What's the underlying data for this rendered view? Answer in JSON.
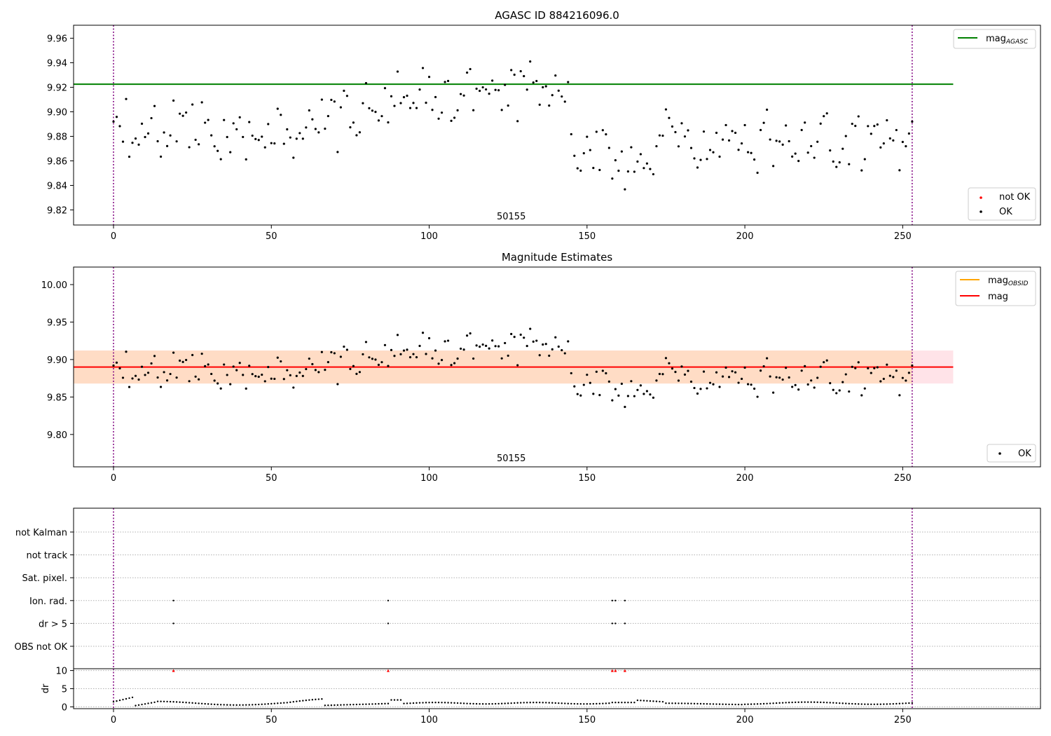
{
  "chart_data": [
    {
      "type": "scatter",
      "title": "AGASC ID 884216096.0",
      "annotation": "50155",
      "xlim": [
        -12.65,
        293.65
      ],
      "ylim": [
        9.8077,
        9.9706
      ],
      "x_ticks": [
        0,
        50,
        100,
        150,
        200,
        250
      ],
      "y_ticks": [
        9.82,
        9.84,
        9.86,
        9.88,
        9.9,
        9.92,
        9.94,
        9.96
      ],
      "y_tick_labels": [
        "9.82",
        "9.84",
        "9.86",
        "9.88",
        "9.90",
        "9.92",
        "9.94",
        "9.96"
      ],
      "vlines": [
        0,
        253
      ],
      "hline": {
        "name": "mag_AGASC",
        "y": 9.9225,
        "x_range": [
          -12.65,
          266
        ],
        "color": "#008000"
      },
      "legend_upper": [
        {
          "label": "mag",
          "sub": "AGASC",
          "color": "#008000",
          "kind": "line"
        }
      ],
      "legend_lower": [
        {
          "label": "not OK",
          "color": "#ff0000",
          "kind": "dot"
        },
        {
          "label": "OK",
          "color": "#000000",
          "kind": "dot"
        }
      ],
      "series": [
        {
          "name": "OK",
          "color": "#000000"
        }
      ]
    },
    {
      "type": "scatter",
      "title": "Magnitude Estimates",
      "annotation": "50155",
      "xlim": [
        -12.65,
        293.65
      ],
      "ylim": [
        9.7568,
        10.0234
      ],
      "x_ticks": [
        0,
        50,
        100,
        150,
        200,
        250
      ],
      "y_ticks": [
        9.8,
        9.85,
        9.9,
        9.95,
        10.0
      ],
      "y_tick_labels": [
        "9.80",
        "9.85",
        "9.90",
        "9.95",
        "10.00"
      ],
      "vlines": [
        0,
        253
      ],
      "band_obsid": {
        "y0": 9.868,
        "y1": 9.912,
        "color": "#ffc0cb"
      },
      "band_mag": {
        "y0": 9.868,
        "y1": 9.912,
        "color": "#ffdab9"
      },
      "hline": {
        "name": "mag",
        "y": 9.89,
        "x_range": [
          -12.65,
          266
        ],
        "color": "#ff0000"
      },
      "legend_upper": [
        {
          "label": "mag",
          "sub": "OBSID",
          "color": "#ffa500",
          "kind": "line"
        },
        {
          "label": "mag",
          "sub": "",
          "color": "#ff0000",
          "kind": "line"
        }
      ],
      "legend_lower": [
        {
          "label": "OK",
          "color": "#000000",
          "kind": "dot"
        }
      ],
      "series": [
        {
          "name": "OK",
          "color": "#000000"
        }
      ]
    },
    {
      "type": "scatter",
      "title": "",
      "xlim": [
        -12.65,
        293.65
      ],
      "x_ticks": [
        0,
        50,
        100,
        150,
        200,
        250
      ],
      "vlines": [
        0,
        253
      ],
      "flag_rows": [
        "not Kalman",
        "not track",
        "Sat. pixel.",
        "Ion. rad.",
        "dr > 5",
        "OBS not OK"
      ],
      "flags": {
        "Ion. rad.": [
          19,
          87,
          158,
          159,
          162
        ],
        "dr > 5": [
          19,
          87,
          158,
          159,
          162
        ]
      }
    },
    {
      "type": "scatter",
      "title": "",
      "ylabel": "dr",
      "xlim": [
        -12.65,
        293.65
      ],
      "ylim": [
        -0.5,
        10.5
      ],
      "y_ticks": [
        0,
        5,
        10
      ],
      "y_tick_labels": [
        "0",
        "5",
        "10"
      ],
      "x_ticks": [
        0,
        50,
        100,
        150,
        200,
        250
      ],
      "x_tick_labels": [
        "0",
        "50",
        "100",
        "150",
        "200",
        "250"
      ],
      "vlines": [
        0,
        253
      ],
      "clipped_marker_x": [
        19,
        87,
        158,
        159,
        162
      ],
      "clipped_marker_color": "#ff0000"
    }
  ]
}
